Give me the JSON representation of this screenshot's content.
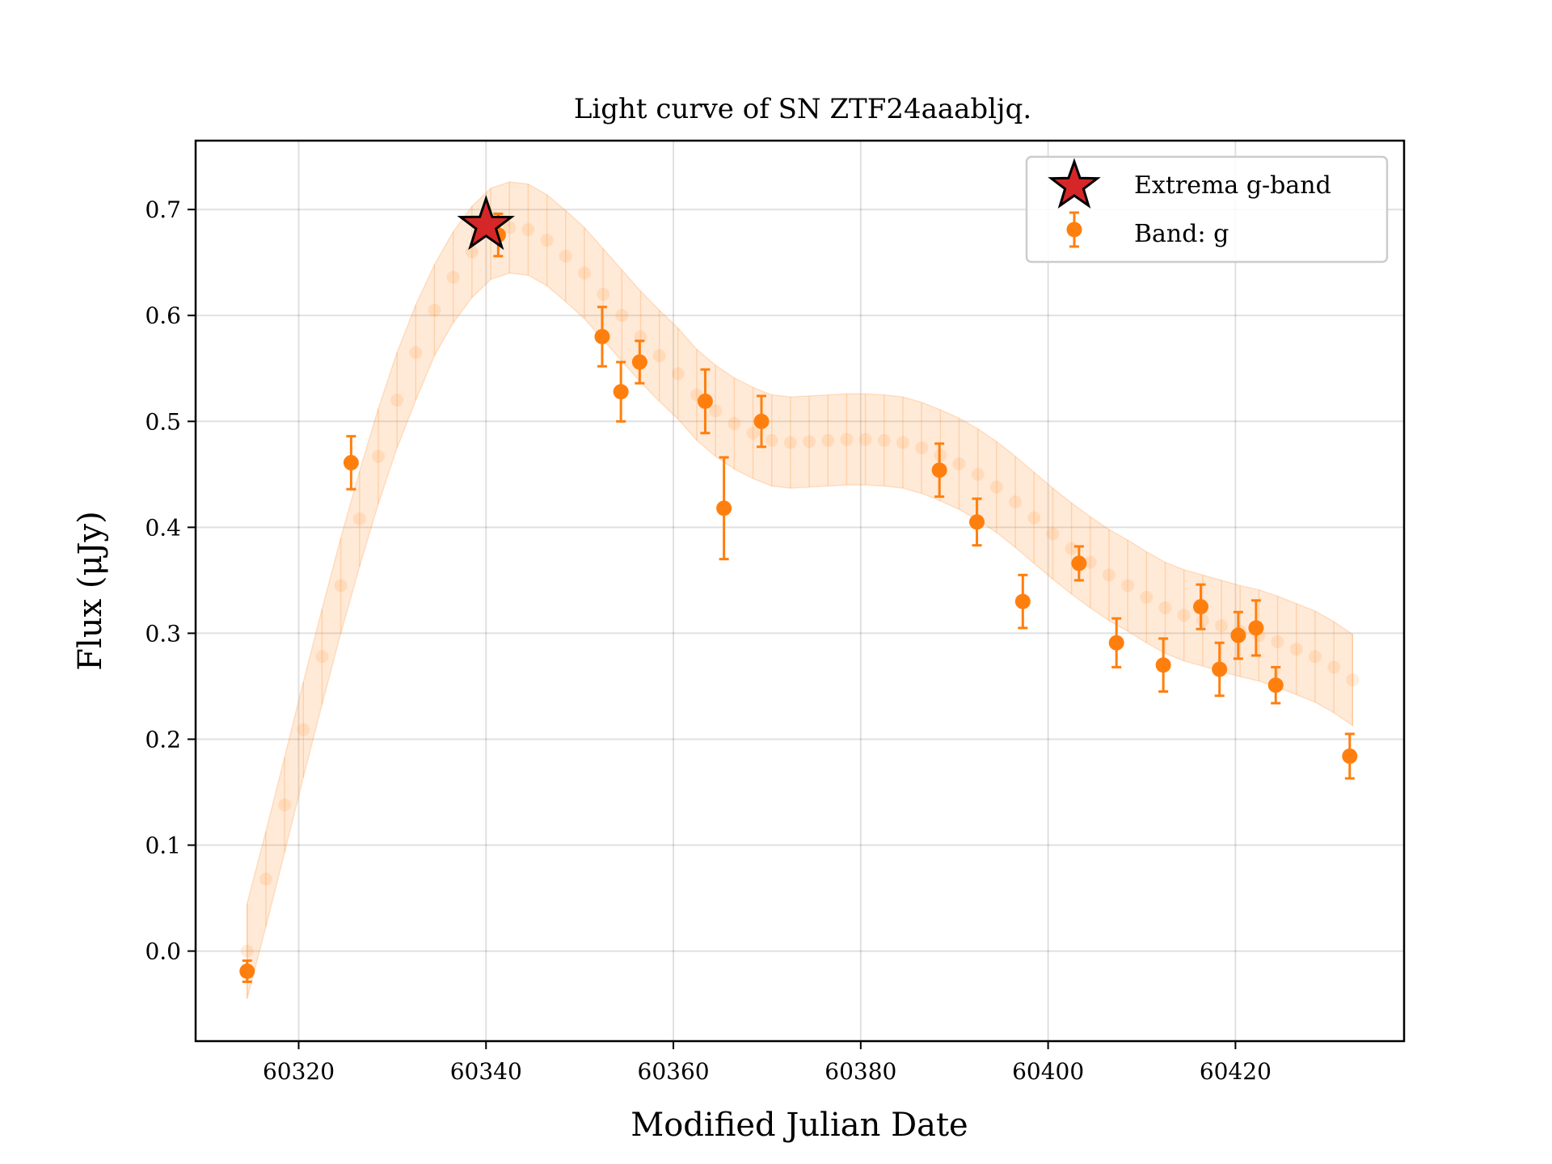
{
  "chart_data": {
    "type": "scatter",
    "title": "Light curve of SN ZTF24aaabljq.",
    "xlabel": "Modified Julian Date",
    "ylabel": "Flux (μJy)",
    "xlim": [
      60309,
      60438
    ],
    "ylim": [
      -0.085,
      0.765
    ],
    "xticks": [
      60320,
      60340,
      60360,
      60380,
      60400,
      60420
    ],
    "yticks": [
      0.0,
      0.1,
      0.2,
      0.3,
      0.4,
      0.5,
      0.6,
      0.7
    ],
    "grid": true,
    "legend_position": "top-right",
    "legend": [
      {
        "label": "Extrema g-band",
        "marker": "star"
      },
      {
        "label": "Band: g",
        "marker": "errorbar-circle"
      }
    ],
    "colors": {
      "band_g": "#ff7f0e",
      "extrema": "#d62728"
    },
    "series": [
      {
        "name": "Band: g",
        "x": [
          60314.5,
          60325.6,
          60341.3,
          60352.4,
          60354.4,
          60356.4,
          60363.4,
          60365.4,
          60369.4,
          60388.4,
          60392.4,
          60397.3,
          60403.3,
          60407.3,
          60412.3,
          60416.3,
          60418.3,
          60420.3,
          60422.2,
          60424.3,
          60432.2
        ],
        "y": [
          -0.019,
          0.461,
          0.676,
          0.58,
          0.528,
          0.556,
          0.519,
          0.418,
          0.5,
          0.454,
          0.405,
          0.33,
          0.366,
          0.291,
          0.27,
          0.325,
          0.266,
          0.298,
          0.305,
          0.251,
          0.184
        ],
        "yerr": [
          0.01,
          0.025,
          0.02,
          0.028,
          0.028,
          0.02,
          0.03,
          0.048,
          0.024,
          0.025,
          0.022,
          0.025,
          0.016,
          0.023,
          0.025,
          0.021,
          0.025,
          0.022,
          0.026,
          0.017,
          0.021
        ]
      },
      {
        "name": "Extrema g-band",
        "x": [
          60340.0
        ],
        "y": [
          0.685
        ]
      },
      {
        "name": "model",
        "x": [
          60314.5,
          60316.5,
          60318.5,
          60320.5,
          60322.5,
          60324.5,
          60326.5,
          60328.5,
          60330.5,
          60332.5,
          60334.5,
          60336.5,
          60338.5,
          60340.5,
          60342.5,
          60344.5,
          60346.5,
          60348.5,
          60350.5,
          60352.5,
          60354.5,
          60356.5,
          60358.5,
          60360.5,
          60362.5,
          60364.5,
          60366.5,
          60368.5,
          60370.5,
          60372.5,
          60374.5,
          60376.5,
          60378.5,
          60380.5,
          60382.5,
          60384.5,
          60386.5,
          60388.5,
          60390.5,
          60392.5,
          60394.5,
          60396.5,
          60398.5,
          60400.5,
          60402.5,
          60404.5,
          60406.5,
          60408.5,
          60410.5,
          60412.5,
          60414.5,
          60416.5,
          60418.5,
          60420.5,
          60422.5,
          60424.5,
          60426.5,
          60428.5,
          60430.5,
          60432.5
        ],
        "y": [
          0.0,
          0.068,
          0.138,
          0.209,
          0.278,
          0.345,
          0.408,
          0.467,
          0.52,
          0.565,
          0.605,
          0.636,
          0.66,
          0.677,
          0.683,
          0.681,
          0.671,
          0.656,
          0.64,
          0.62,
          0.6,
          0.58,
          0.562,
          0.545,
          0.525,
          0.51,
          0.498,
          0.489,
          0.482,
          0.48,
          0.481,
          0.482,
          0.483,
          0.483,
          0.482,
          0.48,
          0.475,
          0.468,
          0.46,
          0.45,
          0.438,
          0.424,
          0.409,
          0.394,
          0.38,
          0.367,
          0.355,
          0.345,
          0.334,
          0.324,
          0.317,
          0.312,
          0.307,
          0.302,
          0.298,
          0.292,
          0.285,
          0.278,
          0.268,
          0.256
        ],
        "yerr": [
          0.045,
          0.045,
          0.045,
          0.045,
          0.045,
          0.045,
          0.045,
          0.045,
          0.045,
          0.045,
          0.043,
          0.043,
          0.043,
          0.043,
          0.043,
          0.043,
          0.043,
          0.043,
          0.043,
          0.043,
          0.043,
          0.043,
          0.043,
          0.043,
          0.043,
          0.043,
          0.043,
          0.043,
          0.043,
          0.043,
          0.043,
          0.043,
          0.043,
          0.043,
          0.043,
          0.043,
          0.043,
          0.043,
          0.043,
          0.043,
          0.043,
          0.043,
          0.043,
          0.043,
          0.043,
          0.043,
          0.043,
          0.043,
          0.043,
          0.043,
          0.043,
          0.043,
          0.043,
          0.043,
          0.043,
          0.043,
          0.043,
          0.043,
          0.043,
          0.043
        ]
      }
    ]
  }
}
